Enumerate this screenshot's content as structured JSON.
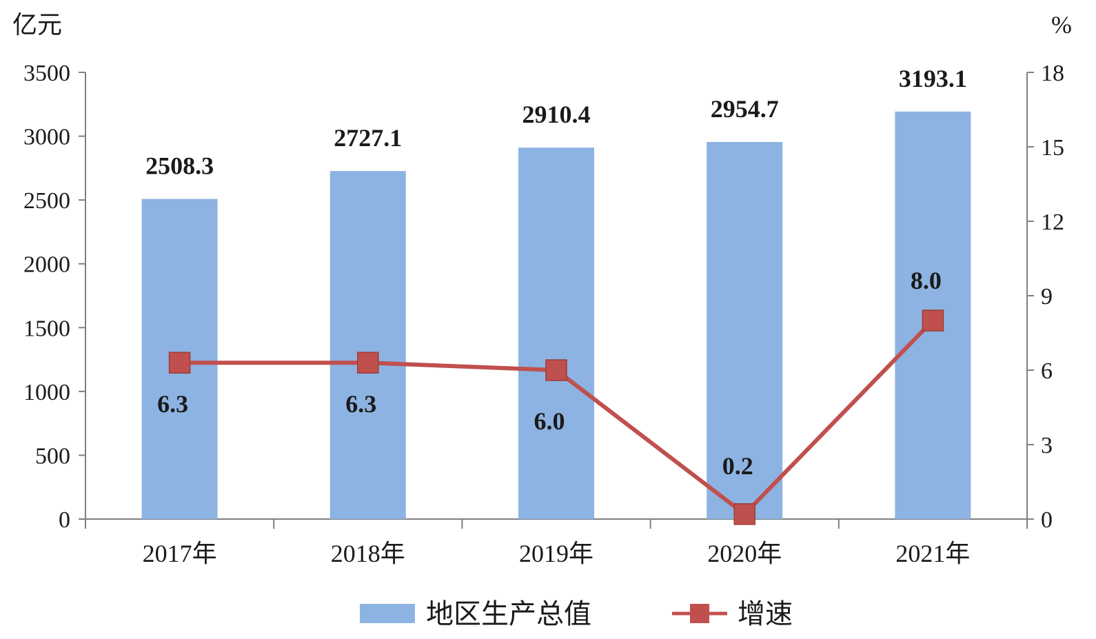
{
  "chart_data": {
    "type": "bar",
    "categories": [
      "2017年",
      "2018年",
      "2019年",
      "2020年",
      "2021年"
    ],
    "y_left_unit": "亿元",
    "y_right_unit": "%",
    "ylim_left": [
      0,
      3500
    ],
    "yticks_left": [
      0,
      500,
      1000,
      1500,
      2000,
      2500,
      3000,
      3500
    ],
    "ylim_right": [
      0,
      18
    ],
    "yticks_right": [
      0,
      3,
      6,
      9,
      12,
      15,
      18
    ],
    "grid": false,
    "legend_position": "bottom",
    "series": [
      {
        "name": "地区生产总值",
        "type": "bar",
        "axis": "left",
        "color": "#8db3e2",
        "values": [
          2508.3,
          2727.1,
          2910.4,
          2954.7,
          3193.1
        ],
        "labels": [
          "2508.3",
          "2727.1",
          "2910.4",
          "2954.7",
          "3193.1"
        ]
      },
      {
        "name": "增速",
        "type": "line",
        "axis": "right",
        "color": "#c0504d",
        "marker": "square",
        "values": [
          6.3,
          6.3,
          6.0,
          0.2,
          8.0
        ],
        "labels": [
          "6.3",
          "6.3",
          "6.0",
          "0.2",
          "8.0"
        ]
      }
    ]
  }
}
